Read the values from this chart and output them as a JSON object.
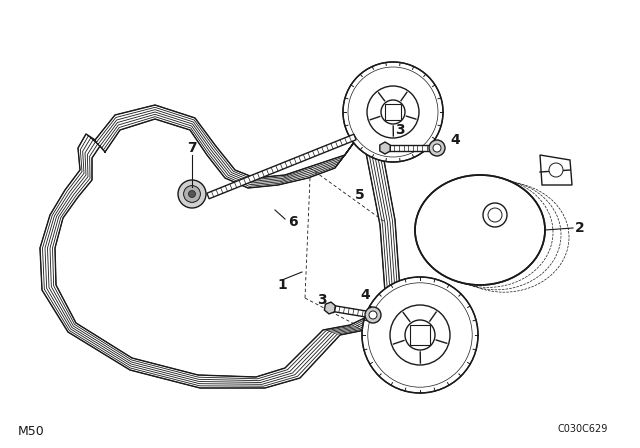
{
  "background_color": "#ffffff",
  "line_color": "#1a1a1a",
  "bottom_left_text": "M50",
  "bottom_right_text": "C030C629",
  "fig_width": 6.4,
  "fig_height": 4.48,
  "dpi": 100,
  "belt_ribs": 6,
  "belt_color": "#e8e8e8",
  "component_fill": "#e0e0e0",
  "component_fill2": "#c8c8c8",
  "shadow_color": "#a0a0a0"
}
